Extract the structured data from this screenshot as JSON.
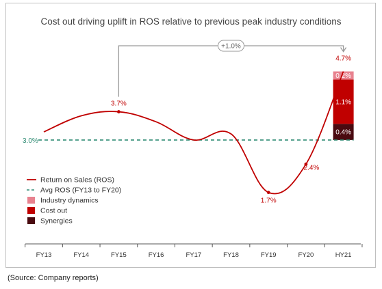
{
  "chart_data": {
    "type": "line",
    "title": "Cost out driving uplift in ROS relative to previous peak industry conditions",
    "categories": [
      "FY13",
      "FY14",
      "FY15",
      "FY16",
      "FY17",
      "FY18",
      "FY19",
      "FY20",
      "HY21"
    ],
    "series": [
      {
        "name": "Return on Sales (ROS)",
        "values": [
          3.2,
          3.6,
          3.7,
          3.45,
          3.0,
          3.15,
          1.7,
          2.4,
          4.7
        ],
        "color": "#c00000"
      },
      {
        "name": "Avg ROS (FY13 to FY20)",
        "values": [
          3.0,
          3.0,
          3.0,
          3.0,
          3.0,
          3.0,
          3.0,
          3.0,
          3.0
        ],
        "color": "#2e8b73",
        "dashed": true
      }
    ],
    "stacked_bar": {
      "category": "HY21",
      "segments": [
        {
          "name": "Synergies",
          "value": 0.4,
          "label": "0.4%",
          "color": "#4a0a10"
        },
        {
          "name": "Cost out",
          "value": 1.1,
          "label": "1.1%",
          "color": "#c00000"
        },
        {
          "name": "Industry dynamics",
          "value": 0.2,
          "label": "0.2%",
          "color": "#e8828f"
        }
      ]
    },
    "point_labels": [
      {
        "category": "FY15",
        "value": 3.7,
        "label": "3.7%"
      },
      {
        "category": "FY19",
        "value": 1.7,
        "label": "1.7%"
      },
      {
        "category": "FY20",
        "value": 2.4,
        "label": "2.4%"
      },
      {
        "category": "HY21",
        "value": 4.7,
        "label": "4.7%"
      }
    ],
    "avg_label": "3.0%",
    "annotation": {
      "text": "+1.0%",
      "from": "FY15",
      "to": "HY21"
    },
    "ylim": [
      1.0,
      5.2
    ],
    "legend": {
      "placement": "bottom-left",
      "items": [
        "Return on Sales (ROS)",
        "Avg ROS (FY13 to FY20)",
        "Industry dynamics",
        "Cost out",
        "Synergies"
      ]
    }
  },
  "source": "(Source: Company reports)"
}
